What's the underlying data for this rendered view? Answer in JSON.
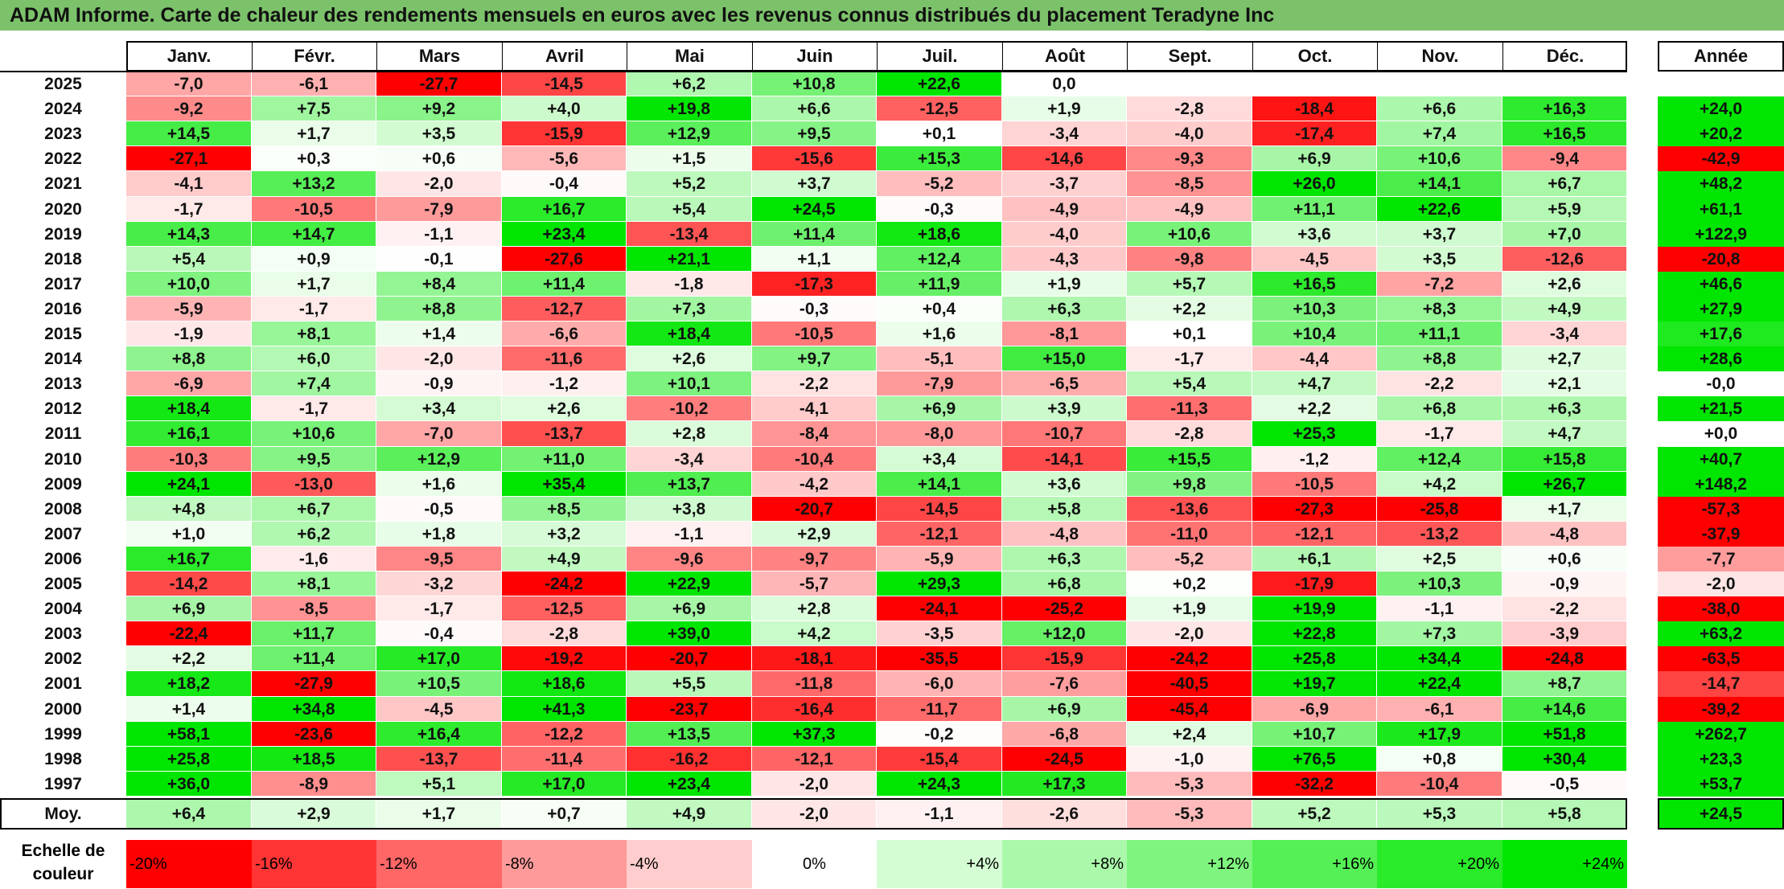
{
  "title": "ADAM Informe. Carte de chaleur des rendements mensuels en euros avec les revenus connus distribués du placement Teradyne Inc",
  "chart_data": {
    "type": "heatmap",
    "columns": [
      "Janv.",
      "Févr.",
      "Mars",
      "Avril",
      "Mai",
      "Juin",
      "Juil.",
      "Août",
      "Sept.",
      "Oct.",
      "Nov.",
      "Déc."
    ],
    "annual_header": "Année",
    "rows": [
      {
        "year": "2025",
        "values": [
          "-7,0",
          "-6,1",
          "-27,7",
          "-14,5",
          "+6,2",
          "+10,8",
          "+22,6",
          "0,0",
          "",
          "",
          "",
          ""
        ],
        "annual": ""
      },
      {
        "year": "2024",
        "values": [
          "-9,2",
          "+7,5",
          "+9,2",
          "+4,0",
          "+19,8",
          "+6,6",
          "-12,5",
          "+1,9",
          "-2,8",
          "-18,4",
          "+6,6",
          "+16,3"
        ],
        "annual": "+24,0"
      },
      {
        "year": "2023",
        "values": [
          "+14,5",
          "+1,7",
          "+3,5",
          "-15,9",
          "+12,9",
          "+9,5",
          "+0,1",
          "-3,4",
          "-4,0",
          "-17,4",
          "+7,4",
          "+16,5"
        ],
        "annual": "+20,2"
      },
      {
        "year": "2022",
        "values": [
          "-27,1",
          "+0,3",
          "+0,6",
          "-5,6",
          "+1,5",
          "-15,6",
          "+15,3",
          "-14,6",
          "-9,3",
          "+6,9",
          "+10,6",
          "-9,4"
        ],
        "annual": "-42,9"
      },
      {
        "year": "2021",
        "values": [
          "-4,1",
          "+13,2",
          "-2,0",
          "-0,4",
          "+5,2",
          "+3,7",
          "-5,2",
          "-3,7",
          "-8,5",
          "+26,0",
          "+14,1",
          "+6,7"
        ],
        "annual": "+48,2"
      },
      {
        "year": "2020",
        "values": [
          "-1,7",
          "-10,5",
          "-7,9",
          "+16,7",
          "+5,4",
          "+24,5",
          "-0,3",
          "-4,9",
          "-4,9",
          "+11,1",
          "+22,6",
          "+5,9"
        ],
        "annual": "+61,1"
      },
      {
        "year": "2019",
        "values": [
          "+14,3",
          "+14,7",
          "-1,1",
          "+23,4",
          "-13,4",
          "+11,4",
          "+18,6",
          "-4,0",
          "+10,6",
          "+3,6",
          "+3,7",
          "+7,0"
        ],
        "annual": "+122,9"
      },
      {
        "year": "2018",
        "values": [
          "+5,4",
          "+0,9",
          "-0,1",
          "-27,6",
          "+21,1",
          "+1,1",
          "+12,4",
          "-4,3",
          "-9,8",
          "-4,5",
          "+3,5",
          "-12,6"
        ],
        "annual": "-20,8"
      },
      {
        "year": "2017",
        "values": [
          "+10,0",
          "+1,7",
          "+8,4",
          "+11,4",
          "-1,8",
          "-17,3",
          "+11,9",
          "+1,9",
          "+5,7",
          "+16,5",
          "-7,2",
          "+2,6"
        ],
        "annual": "+46,6"
      },
      {
        "year": "2016",
        "values": [
          "-5,9",
          "-1,7",
          "+8,8",
          "-12,7",
          "+7,3",
          "-0,3",
          "+0,4",
          "+6,3",
          "+2,2",
          "+10,3",
          "+8,3",
          "+4,9"
        ],
        "annual": "+27,9"
      },
      {
        "year": "2015",
        "values": [
          "-1,9",
          "+8,1",
          "+1,4",
          "-6,6",
          "+18,4",
          "-10,5",
          "+1,6",
          "-8,1",
          "+0,1",
          "+10,4",
          "+11,1",
          "-3,4"
        ],
        "annual": "+17,6"
      },
      {
        "year": "2014",
        "values": [
          "+8,8",
          "+6,0",
          "-2,0",
          "-11,6",
          "+2,6",
          "+9,7",
          "-5,1",
          "+15,0",
          "-1,7",
          "-4,4",
          "+8,8",
          "+2,7"
        ],
        "annual": "+28,6"
      },
      {
        "year": "2013",
        "values": [
          "-6,9",
          "+7,4",
          "-0,9",
          "-1,2",
          "+10,1",
          "-2,2",
          "-7,9",
          "-6,5",
          "+5,4",
          "+4,7",
          "-2,2",
          "+2,1"
        ],
        "annual": "-0,0"
      },
      {
        "year": "2012",
        "values": [
          "+18,4",
          "-1,7",
          "+3,4",
          "+2,6",
          "-10,2",
          "-4,1",
          "+6,9",
          "+3,9",
          "-11,3",
          "+2,2",
          "+6,8",
          "+6,3"
        ],
        "annual": "+21,5"
      },
      {
        "year": "2011",
        "values": [
          "+16,1",
          "+10,6",
          "-7,0",
          "-13,7",
          "+2,8",
          "-8,4",
          "-8,0",
          "-10,7",
          "-2,8",
          "+25,3",
          "-1,7",
          "+4,7"
        ],
        "annual": "+0,0"
      },
      {
        "year": "2010",
        "values": [
          "-10,3",
          "+9,5",
          "+12,9",
          "+11,0",
          "-3,4",
          "-10,4",
          "+3,4",
          "-14,1",
          "+15,5",
          "-1,2",
          "+12,4",
          "+15,8"
        ],
        "annual": "+40,7"
      },
      {
        "year": "2009",
        "values": [
          "+24,1",
          "-13,0",
          "+1,6",
          "+35,4",
          "+13,7",
          "-4,2",
          "+14,1",
          "+3,6",
          "+9,8",
          "-10,5",
          "+4,2",
          "+26,7"
        ],
        "annual": "+148,2"
      },
      {
        "year": "2008",
        "values": [
          "+4,8",
          "+6,7",
          "-0,5",
          "+8,5",
          "+3,8",
          "-20,7",
          "-14,5",
          "+5,8",
          "-13,6",
          "-27,3",
          "-25,8",
          "+1,7"
        ],
        "annual": "-57,3"
      },
      {
        "year": "2007",
        "values": [
          "+1,0",
          "+6,2",
          "+1,8",
          "+3,2",
          "-1,1",
          "+2,9",
          "-12,1",
          "-4,8",
          "-11,0",
          "-12,1",
          "-13,2",
          "-4,8"
        ],
        "annual": "-37,9"
      },
      {
        "year": "2006",
        "values": [
          "+16,7",
          "-1,6",
          "-9,5",
          "+4,9",
          "-9,6",
          "-9,7",
          "-5,9",
          "+6,3",
          "-5,2",
          "+6,1",
          "+2,5",
          "+0,6"
        ],
        "annual": "-7,7"
      },
      {
        "year": "2005",
        "values": [
          "-14,2",
          "+8,1",
          "-3,2",
          "-24,2",
          "+22,9",
          "-5,7",
          "+29,3",
          "+6,8",
          "+0,2",
          "-17,9",
          "+10,3",
          "-0,9"
        ],
        "annual": "-2,0"
      },
      {
        "year": "2004",
        "values": [
          "+6,9",
          "-8,5",
          "-1,7",
          "-12,5",
          "+6,9",
          "+2,8",
          "-24,1",
          "-25,2",
          "+1,9",
          "+19,9",
          "-1,1",
          "-2,2"
        ],
        "annual": "-38,0"
      },
      {
        "year": "2003",
        "values": [
          "-22,4",
          "+11,7",
          "-0,4",
          "-2,8",
          "+39,0",
          "+4,2",
          "-3,5",
          "+12,0",
          "-2,0",
          "+22,8",
          "+7,3",
          "-3,9"
        ],
        "annual": "+63,2"
      },
      {
        "year": "2002",
        "values": [
          "+2,2",
          "+11,4",
          "+17,0",
          "-19,2",
          "-20,7",
          "-18,1",
          "-35,5",
          "-15,9",
          "-24,2",
          "+25,8",
          "+34,4",
          "-24,8"
        ],
        "annual": "-63,5"
      },
      {
        "year": "2001",
        "values": [
          "+18,2",
          "-27,9",
          "+10,5",
          "+18,6",
          "+5,5",
          "-11,8",
          "-6,0",
          "-7,6",
          "-40,5",
          "+19,7",
          "+22,4",
          "+8,7"
        ],
        "annual": "-14,7"
      },
      {
        "year": "2000",
        "values": [
          "+1,4",
          "+34,8",
          "-4,5",
          "+41,3",
          "-23,7",
          "-16,4",
          "-11,7",
          "+6,9",
          "-45,4",
          "-6,9",
          "-6,1",
          "+14,6"
        ],
        "annual": "-39,2"
      },
      {
        "year": "1999",
        "values": [
          "+58,1",
          "-23,6",
          "+16,4",
          "-12,2",
          "+13,5",
          "+37,3",
          "-0,2",
          "-6,8",
          "+2,4",
          "+10,7",
          "+17,9",
          "+51,8"
        ],
        "annual": "+262,7"
      },
      {
        "year": "1998",
        "values": [
          "+25,8",
          "+18,5",
          "-13,7",
          "-11,4",
          "-16,2",
          "-12,1",
          "-15,4",
          "-24,5",
          "-1,0",
          "+76,5",
          "+0,8",
          "+30,4"
        ],
        "annual": "+23,3"
      },
      {
        "year": "1997",
        "values": [
          "+36,0",
          "-8,9",
          "+5,1",
          "+17,0",
          "+23,4",
          "-2,0",
          "+24,3",
          "+17,3",
          "-5,3",
          "-32,2",
          "-10,4",
          "-0,5"
        ],
        "annual": "+53,7"
      }
    ],
    "average": {
      "label": "Moy.",
      "values": [
        "+6,4",
        "+2,9",
        "+1,7",
        "+0,7",
        "+4,9",
        "-2,0",
        "-1,1",
        "-2,6",
        "-5,3",
        "+5,2",
        "+5,3",
        "+5,8"
      ],
      "annual": "+24,5"
    },
    "color_scale": {
      "label": "Echelle de couleur",
      "stops": [
        "-20%",
        "-16%",
        "-12%",
        "-8%",
        "-4%",
        "0%",
        "+4%",
        "+8%",
        "+12%",
        "+16%",
        "+20%",
        "+24%"
      ],
      "colors": [
        "#ff0000",
        "#ff3434",
        "#ff6767",
        "#ff9a9a",
        "#ffcdcd",
        "#ffffff",
        "#d4fdd4",
        "#aaf9aa",
        "#7ff57f",
        "#55f055",
        "#2aeb2a",
        "#00e600"
      ]
    }
  }
}
